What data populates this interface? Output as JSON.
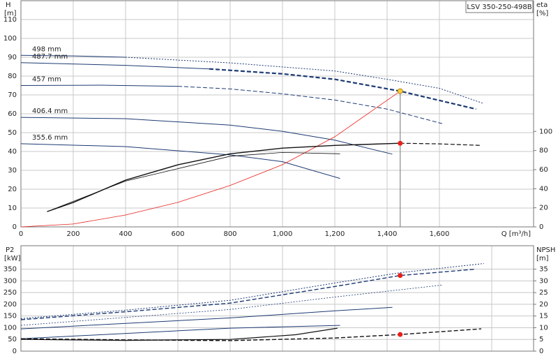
{
  "chart_data": [
    {
      "type": "line",
      "model": "LSV 350-250-498B",
      "y_label": "H",
      "y_unit": "[m]",
      "y2_label": "eta",
      "y2_unit": "[%]",
      "x_label": "Q [m³/h]",
      "xlim": [
        0,
        1960
      ],
      "xticks": [
        0,
        200,
        400,
        600,
        800,
        {
          "value": 1000,
          "label": "1,000"
        },
        {
          "value": 1200,
          "label": "1,200"
        },
        {
          "value": 1400,
          "label": "1,400"
        },
        {
          "value": 1600,
          "label": "1,600"
        }
      ],
      "x_tick_labels": true,
      "ylim": [
        0,
        120
      ],
      "yticks": [
        0,
        10,
        20,
        30,
        40,
        50,
        60,
        70,
        80,
        90,
        100,
        110
      ],
      "y2lim": [
        0,
        237
      ],
      "y2ticks": [
        0,
        20,
        40,
        60,
        80,
        100
      ],
      "grid": true,
      "series": [
        {
          "name": "498 mm",
          "color": "#1d3a73",
          "style": "solid",
          "width": 1,
          "x": [
            0,
            200,
            400
          ],
          "values": [
            91,
            90.7,
            90
          ]
        },
        {
          "color": "#1d3a73",
          "style": "dotted",
          "width": 1,
          "x": [
            400,
            800,
            1200,
            1400,
            1600,
            1770
          ],
          "values": [
            90,
            87,
            82.7,
            78.3,
            73.5,
            65.4
          ]
        },
        {
          "name": "487.7 mm",
          "color": "#1d3a73",
          "style": "solid",
          "width": 1,
          "x": [
            0,
            400,
            720
          ],
          "values": [
            87.1,
            85.7,
            83.8
          ]
        },
        {
          "color": "#1d3a73",
          "style": "dashed",
          "width": 2.2,
          "x": [
            720,
            1000,
            1200,
            1450,
            1740
          ],
          "values": [
            83.8,
            81.2,
            78.3,
            72,
            62.5
          ]
        },
        {
          "name": "457 mm",
          "color": "#1d3a73",
          "style": "solid",
          "width": 1,
          "x": [
            0,
            300,
            600
          ],
          "values": [
            75,
            75.2,
            74.6
          ]
        },
        {
          "color": "#1d3a73",
          "style": "dashed",
          "width": 1,
          "x": [
            600,
            800,
            1000,
            1200,
            1400,
            1610
          ],
          "values": [
            74.6,
            73.2,
            70.6,
            67.3,
            62.5,
            54.8
          ]
        },
        {
          "name": "406.4 mm",
          "color": "#1d3a73",
          "style": "solid",
          "width": 1,
          "x": [
            0,
            400,
            800,
            1000,
            1200,
            1420
          ],
          "values": [
            58.1,
            57.4,
            54,
            50.7,
            46,
            38.6
          ]
        },
        {
          "name": "355.6 mm",
          "color": "#1d3a73",
          "style": "solid",
          "width": 1,
          "x": [
            0,
            400,
            800,
            1000,
            1220
          ],
          "values": [
            44.1,
            42.6,
            38.2,
            34.6,
            25.7
          ]
        },
        {
          "color": "#e8201a",
          "style": "solid",
          "width": 0.8,
          "x": [
            0,
            200,
            400,
            600,
            800,
            1000,
            1200,
            1450
          ],
          "values": [
            0,
            1.5,
            6.3,
            13,
            22,
            33,
            47.8,
            72
          ]
        },
        {
          "color": "#111111",
          "style": "solid",
          "width": 1.4,
          "axis": "y2",
          "x": [
            100,
            200,
            400,
            600,
            800,
            1000,
            1200,
            1450
          ],
          "values": [
            16,
            25.5,
            49,
            65,
            76.6,
            82.5,
            85.4,
            87.6
          ]
        },
        {
          "color": "#111111",
          "style": "dashed",
          "width": 1.2,
          "axis": "y2",
          "x": [
            1450,
            1600,
            1760
          ],
          "values": [
            87.6,
            87,
            85.4
          ]
        },
        {
          "color": "#111111",
          "style": "solid",
          "width": 0.8,
          "axis": "y2",
          "x": [
            100,
            400,
            800,
            1000,
            1220
          ],
          "values": [
            16,
            48,
            74,
            78,
            76.6
          ]
        }
      ],
      "operating_point": {
        "x": 1450,
        "y": 72,
        "y2": 87.6
      }
    },
    {
      "type": "line",
      "y_label": "P2",
      "y_unit": "[kW]",
      "y2_label": "NPSH",
      "y2_unit": "[m]",
      "xlim": [
        0,
        1960
      ],
      "xticks": [
        0,
        200,
        400,
        600,
        800,
        1000,
        1200,
        1400,
        1600,
        1800
      ],
      "x_tick_labels": false,
      "ylim": [
        0,
        450
      ],
      "yticks": [
        0,
        50,
        100,
        150,
        200,
        250,
        300,
        350
      ],
      "y2lim": [
        0,
        45
      ],
      "y2ticks": [
        0,
        5,
        10,
        15,
        20,
        25,
        30,
        35
      ],
      "grid": true,
      "series": [
        {
          "color": "#1d3a73",
          "style": "dotted",
          "width": 1,
          "x": [
            0,
            400,
            800,
            1200,
            1450,
            1770
          ],
          "values": [
            139,
            175,
            217,
            291,
            335,
            374
          ]
        },
        {
          "color": "#1d3a73",
          "style": "dashed",
          "width": 1.4,
          "x": [
            0,
            400,
            800,
            1200,
            1450,
            1740
          ],
          "values": [
            134,
            168,
            205,
            276,
            323,
            350
          ]
        },
        {
          "color": "#1d3a73",
          "style": "dotted",
          "width": 0.8,
          "x": [
            0,
            800,
            1200,
            1610
          ],
          "values": [
            110,
            178,
            231,
            282
          ]
        },
        {
          "color": "#1d3a73",
          "style": "solid",
          "width": 1,
          "x": [
            0,
            800,
            1200,
            1420
          ],
          "values": [
            95,
            142,
            172,
            187
          ]
        },
        {
          "color": "#1d3a73",
          "style": "solid",
          "width": 1,
          "x": [
            0,
            800,
            1220
          ],
          "values": [
            53,
            98,
            110
          ]
        },
        {
          "color": "#111111",
          "style": "dashed",
          "width": 1.4,
          "axis": "y2",
          "x": [
            0,
            400,
            800,
            1200,
            1450,
            1760
          ],
          "values": [
            5.3,
            4.8,
            4.5,
            5.6,
            7.1,
            9.5
          ]
        },
        {
          "color": "#111111",
          "style": "solid",
          "width": 1.2,
          "axis": "y2",
          "x": [
            0,
            400,
            800,
            1050,
            1210
          ],
          "values": [
            5,
            4.6,
            5,
            7,
            9.8
          ]
        }
      ],
      "operating_point": {
        "x": 1450,
        "y": 323,
        "y2": 7.1
      }
    }
  ]
}
